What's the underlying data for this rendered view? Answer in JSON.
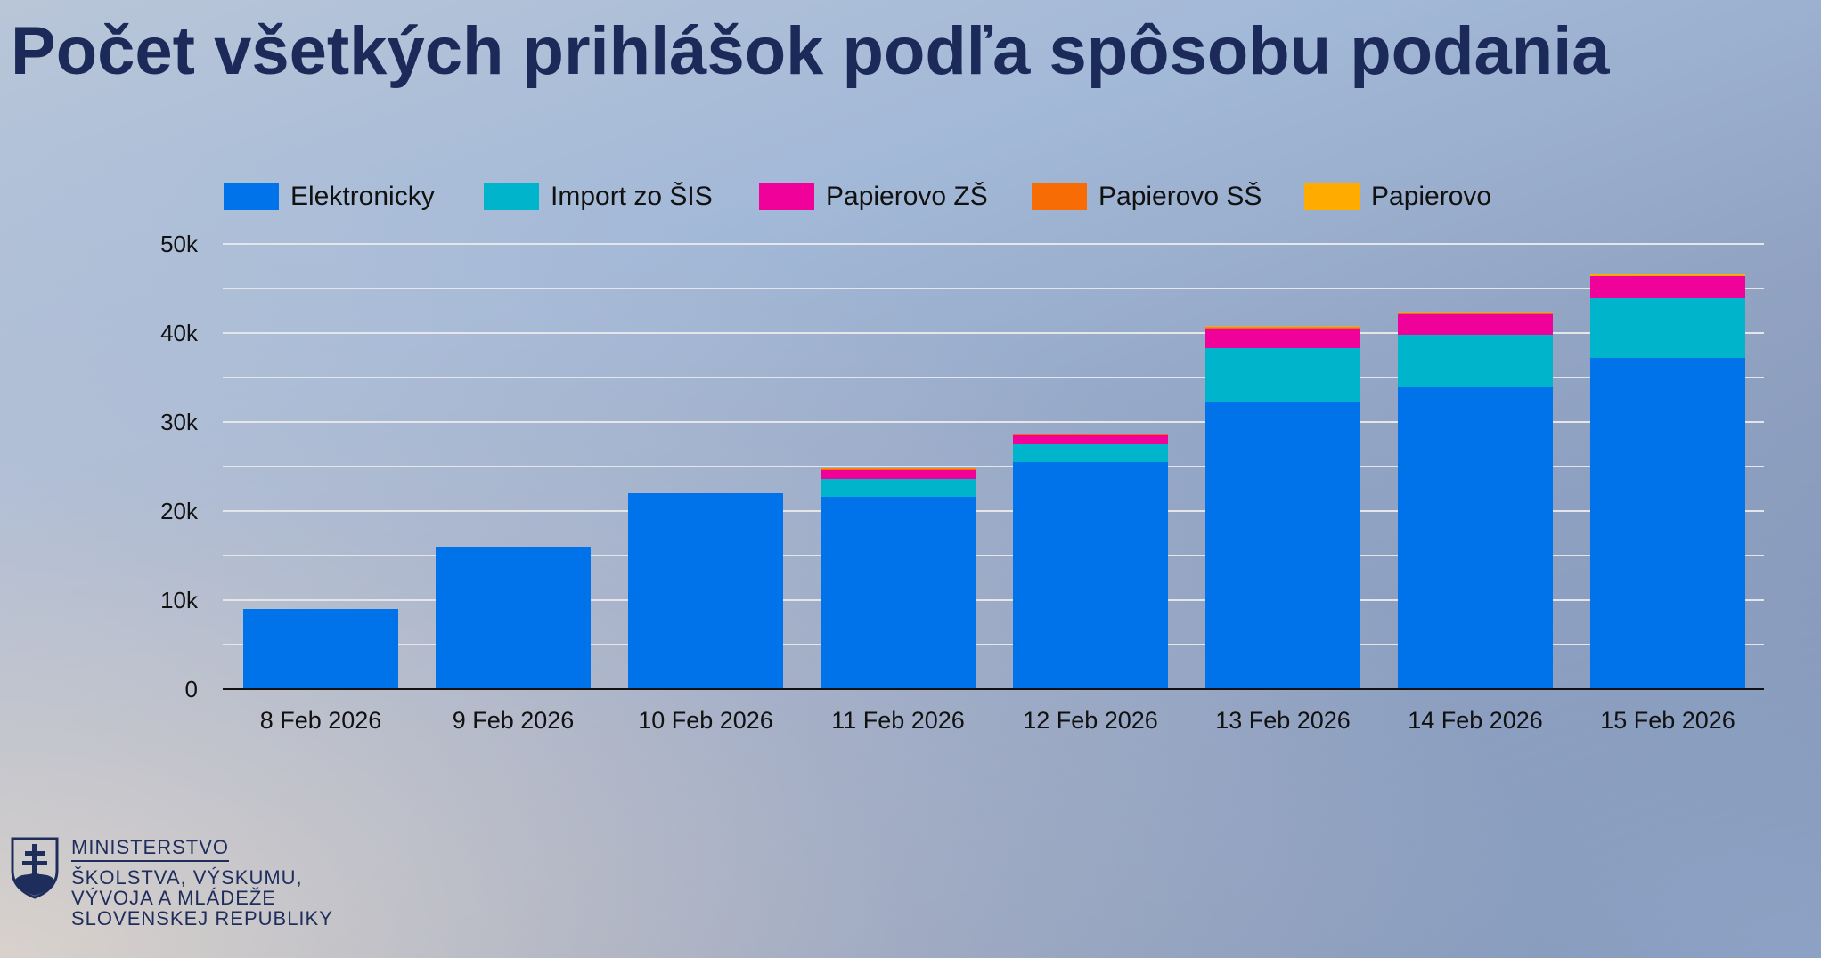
{
  "chart_data": {
    "type": "bar",
    "stacked": true,
    "title": "Počet všetkých prihlášok podľa spôsobu podania",
    "xlabel": "",
    "ylabel": "",
    "ylim": [
      0,
      50000
    ],
    "yticks": [
      0,
      10000,
      20000,
      30000,
      40000,
      50000
    ],
    "ytick_labels": [
      "0",
      "10k",
      "20k",
      "30k",
      "40k",
      "50k"
    ],
    "grid": true,
    "legend_position": "top",
    "categories": [
      "8 Feb 2026",
      "9 Feb 2026",
      "10 Feb 2026",
      "11 Feb 2026",
      "12 Feb 2026",
      "13 Feb 2026",
      "14 Feb 2026",
      "15 Feb 2026"
    ],
    "series": [
      {
        "name": "Elektronicky",
        "color": "#0073ea",
        "values": [
          9000,
          16000,
          22000,
          21600,
          25500,
          32300,
          33900,
          37200
        ]
      },
      {
        "name": "Import zo ŠIS",
        "color": "#00b4cb",
        "values": [
          0,
          0,
          0,
          2000,
          2000,
          6000,
          5900,
          6700
        ]
      },
      {
        "name": "Papierovo ZŠ",
        "color": "#f0029a",
        "values": [
          0,
          0,
          0,
          1000,
          1000,
          2200,
          2300,
          2500
        ]
      },
      {
        "name": "Papierovo SŠ",
        "color": "#f76c05",
        "values": [
          0,
          0,
          0,
          150,
          150,
          150,
          150,
          0
        ]
      },
      {
        "name": "Papierovo",
        "color": "#ffab00",
        "values": [
          0,
          0,
          0,
          50,
          50,
          100,
          100,
          200
        ]
      }
    ]
  },
  "logo": {
    "line1": "MINISTERSTVO",
    "line2": "ŠKOLSTVA, VÝSKUMU,",
    "line3": "VÝVOJA A MLÁDEŽE",
    "line4": "SLOVENSKEJ REPUBLIKY"
  }
}
